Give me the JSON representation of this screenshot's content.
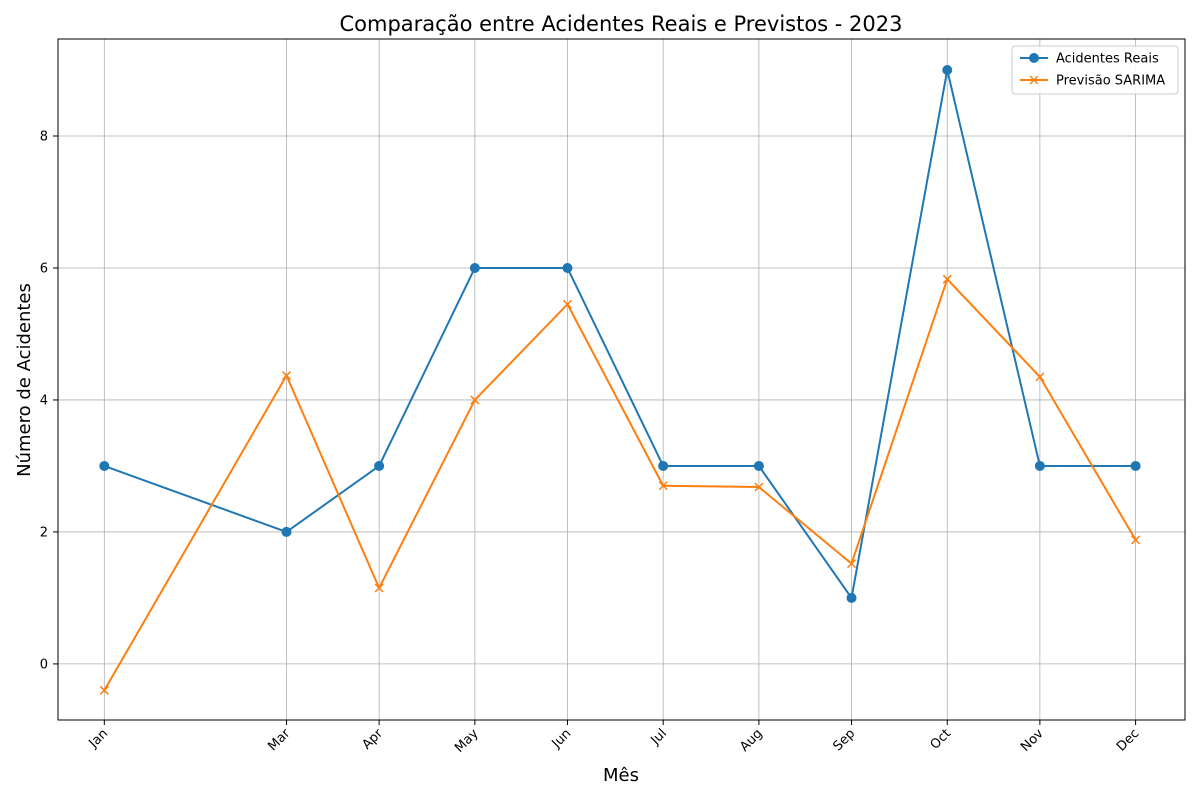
{
  "chart_data": {
    "type": "line",
    "title": "Comparação entre Acidentes Reais e Previstos - 2023",
    "xlabel": "Mês",
    "ylabel": "Número de Acidentes",
    "categories": [
      "Jan",
      "Mar",
      "Apr",
      "May",
      "Jun",
      "Jul",
      "Aug",
      "Sep",
      "Oct",
      "Nov",
      "Dec"
    ],
    "x_dates": [
      "2023-01-31",
      "2023-03-31",
      "2023-04-30",
      "2023-05-31",
      "2023-06-30",
      "2023-07-31",
      "2023-08-31",
      "2023-09-30",
      "2023-10-31",
      "2023-11-30",
      "2023-12-31"
    ],
    "y_ticks": [
      0,
      2,
      4,
      6,
      8
    ],
    "ylim": [
      -0.85,
      9.47
    ],
    "grid": true,
    "legend_position": "top-right",
    "series": [
      {
        "name": "Acidentes Reais",
        "color": "#1f77b4",
        "marker": "circle",
        "values": [
          3,
          2,
          3,
          6,
          6,
          3,
          3,
          1,
          9,
          3,
          3
        ]
      },
      {
        "name": "Previsão SARIMA",
        "color": "#ff7f0e",
        "marker": "x",
        "values": [
          -0.4,
          4.37,
          1.15,
          4.0,
          5.45,
          2.7,
          2.68,
          1.52,
          5.83,
          4.35,
          1.88
        ]
      }
    ]
  }
}
